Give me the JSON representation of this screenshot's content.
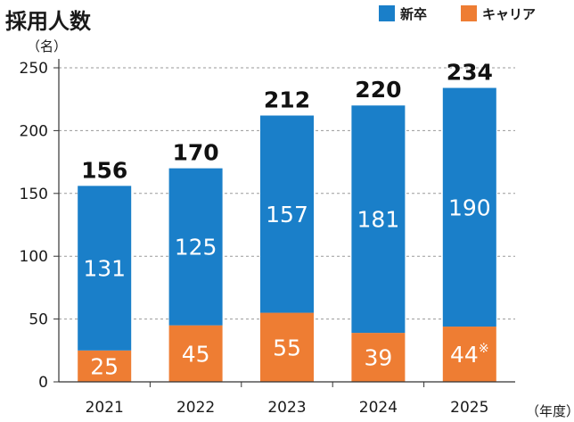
{
  "title": "採用人数",
  "y_unit": "（名）",
  "x_unit": "（年度）",
  "colors": {
    "new_grad": "#1a7fc9",
    "career": "#ee7d33"
  },
  "chart_data": {
    "type": "bar",
    "stacked": true,
    "categories": [
      "2021",
      "2022",
      "2023",
      "2024",
      "2025"
    ],
    "series": [
      {
        "name": "キャリア",
        "values": [
          25,
          45,
          55,
          39,
          44
        ],
        "labels": [
          "25",
          "45",
          "55",
          "39",
          "44※"
        ]
      },
      {
        "name": "新卒",
        "values": [
          131,
          125,
          157,
          181,
          190
        ],
        "labels": [
          "131",
          "125",
          "157",
          "181",
          "190"
        ]
      }
    ],
    "totals": [
      156,
      170,
      212,
      220,
      234
    ],
    "ylim": [
      0,
      250
    ],
    "yticks": [
      0,
      50,
      100,
      150,
      200,
      250
    ],
    "grid": true,
    "legend": "top-right"
  }
}
